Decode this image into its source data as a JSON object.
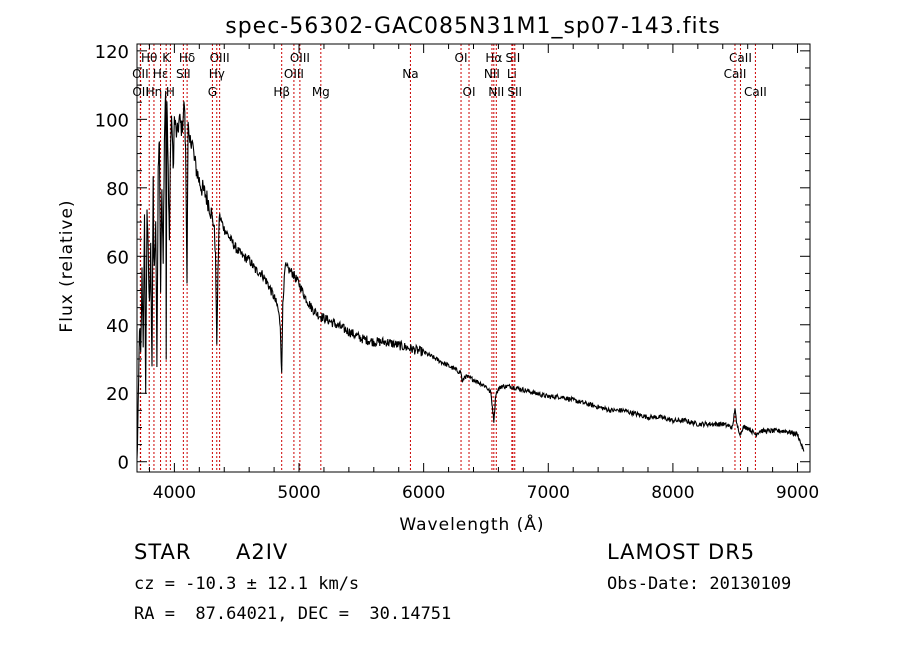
{
  "chart_data": {
    "type": "line",
    "title": "spec-56302-GAC085N31M1_sp07-143.fits",
    "xlabel": "Wavelength (Å)",
    "ylabel": "Flux (relative)",
    "xlim": [
      3700,
      9100
    ],
    "ylim": [
      -3,
      122
    ],
    "xticks": [
      4000,
      5000,
      6000,
      7000,
      8000,
      9000
    ],
    "yticks": [
      0,
      20,
      40,
      60,
      80,
      100,
      120
    ],
    "grid": false,
    "legend": "none",
    "line_color": "#000000",
    "marker_color": "#cc0000",
    "series": [
      {
        "x": [
          3700,
          3710,
          3720,
          3730,
          3740,
          3750,
          3760,
          3770,
          3780,
          3790,
          3800,
          3810,
          3820,
          3830,
          3835,
          3840,
          3850,
          3860,
          3870,
          3880,
          3889,
          3900,
          3910,
          3920,
          3930,
          3934,
          3940,
          3950,
          3960,
          3970,
          3980,
          3990,
          4000,
          4020,
          4040,
          4060,
          4080,
          4090,
          4101,
          4110,
          4120,
          4140,
          4160,
          4180,
          4200,
          4220,
          4250,
          4280,
          4300,
          4320,
          4330,
          4340,
          4350,
          4360,
          4380,
          4400,
          4450,
          4500,
          4550,
          4600,
          4650,
          4700,
          4750,
          4800,
          4830,
          4850,
          4861,
          4870,
          4890,
          4920,
          4950,
          5000,
          5050,
          5100,
          5150,
          5200,
          5300,
          5400,
          5500,
          5600,
          5700,
          5800,
          5900,
          6000,
          6100,
          6200,
          6300,
          6310,
          6330,
          6400,
          6500,
          6540,
          6563,
          6580,
          6620,
          6700,
          6800,
          6900,
          7000,
          7100,
          7200,
          7300,
          7400,
          7500,
          7600,
          7700,
          7800,
          7900,
          8000,
          8100,
          8200,
          8300,
          8400,
          8480,
          8498,
          8510,
          8542,
          8560,
          8600,
          8662,
          8700,
          8800,
          8900,
          9000,
          9050
        ],
        "y": [
          0,
          15,
          40,
          30,
          55,
          35,
          70,
          20,
          75,
          60,
          45,
          65,
          25,
          85,
          60,
          55,
          70,
          30,
          85,
          95,
          50,
          80,
          60,
          95,
          110,
          28,
          105,
          85,
          65,
          95,
          100,
          85,
          100,
          95,
          100,
          97,
          105,
          90,
          55,
          98,
          92,
          95,
          88,
          85,
          82,
          80,
          78,
          75,
          72,
          68,
          60,
          35,
          55,
          72,
          70,
          68,
          65,
          62,
          60,
          59,
          56,
          55,
          52,
          48,
          45,
          40,
          25,
          47,
          57,
          56,
          55,
          52,
          48,
          45,
          43,
          42,
          40,
          38,
          36,
          35,
          35,
          34,
          33,
          32,
          30,
          28,
          26,
          23,
          25,
          24,
          22,
          20,
          12,
          20,
          22,
          22,
          21,
          20,
          19,
          19,
          18,
          17,
          16,
          15,
          15,
          14,
          13,
          13,
          12,
          12,
          11,
          11,
          11,
          10,
          16,
          11,
          8,
          10,
          10,
          8,
          9,
          9,
          9,
          8,
          3
        ]
      }
    ],
    "line_markers": [
      {
        "name": "Hθ",
        "x": 3798,
        "row": 1
      },
      {
        "name": "OII",
        "x": 3727,
        "row": 2
      },
      {
        "name": "OII",
        "x": 3729,
        "row": 3
      },
      {
        "name": "Hη",
        "x": 3836,
        "row": 3
      },
      {
        "name": "Hε",
        "x": 3889,
        "row": 2
      },
      {
        "name": "K",
        "x": 3934,
        "row": 1
      },
      {
        "name": "H",
        "x": 3968,
        "row": 3
      },
      {
        "name": "Hδ",
        "x": 4102,
        "row": 1
      },
      {
        "name": "SII",
        "x": 4072,
        "row": 2
      },
      {
        "name": "OIII",
        "x": 4363,
        "row": 1
      },
      {
        "name": "Hγ",
        "x": 4340,
        "row": 2
      },
      {
        "name": "G",
        "x": 4305,
        "row": 3
      },
      {
        "name": "Hβ",
        "x": 4861,
        "row": 3
      },
      {
        "name": "OIII",
        "x": 4959,
        "row": 2
      },
      {
        "name": "OIII",
        "x": 5007,
        "row": 1
      },
      {
        "name": "Mg",
        "x": 5175,
        "row": 3
      },
      {
        "name": "Na",
        "x": 5894,
        "row": 2
      },
      {
        "name": "OI",
        "x": 6300,
        "row": 1
      },
      {
        "name": "OI",
        "x": 6364,
        "row": 3
      },
      {
        "name": "Hα",
        "x": 6563,
        "row": 1
      },
      {
        "name": "NII",
        "x": 6548,
        "row": 2
      },
      {
        "name": "NII",
        "x": 6583,
        "row": 3
      },
      {
        "name": "SII",
        "x": 6716,
        "row": 1
      },
      {
        "name": "Li",
        "x": 6708,
        "row": 2
      },
      {
        "name": "SII",
        "x": 6731,
        "row": 3
      },
      {
        "name": "CaII",
        "x": 8542,
        "row": 1
      },
      {
        "name": "CaII",
        "x": 8498,
        "row": 2
      },
      {
        "name": "CaII",
        "x": 8662,
        "row": 3
      }
    ]
  },
  "info": {
    "class_label": "STAR",
    "subclass": "A2IV",
    "survey": "LAMOST DR5",
    "cz_line": "cz = -10.3 ± 12.1 km/s",
    "obs_date_line": "Obs-Date: 20130109",
    "radec_line": "RA =  87.64021, DEC =  30.14751"
  }
}
